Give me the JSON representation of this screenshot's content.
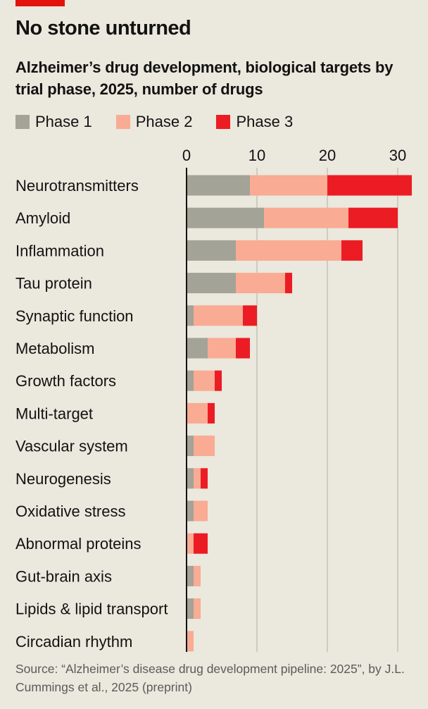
{
  "header": {
    "title": "No stone unturned",
    "subtitle": "Alzheimer’s drug development, biological targets by trial phase, 2025, number of drugs"
  },
  "colors": {
    "background": "#ebe8dd",
    "accent": "#e3120b",
    "phase1": "#a3a397",
    "phase2": "#f9ab93",
    "phase3": "#ec1c24",
    "gridline": "#c5c2b8",
    "axis": "#121212"
  },
  "legend": {
    "items": [
      {
        "label": "Phase 1",
        "color": "#a3a397"
      },
      {
        "label": "Phase 2",
        "color": "#f9ab93"
      },
      {
        "label": "Phase 3",
        "color": "#ec1c24"
      }
    ]
  },
  "chart_data": {
    "type": "bar",
    "orientation": "horizontal",
    "stacked": true,
    "title": "No stone unturned",
    "subtitle": "Alzheimer’s drug development, biological targets by trial phase, 2025, number of drugs",
    "xlim": [
      0,
      32
    ],
    "xticks": [
      0,
      10,
      20,
      30
    ],
    "grid": true,
    "legend_position": "top-left",
    "categories": [
      "Neurotransmitters",
      "Amyloid",
      "Inflammation",
      "Tau protein",
      "Synaptic function",
      "Metabolism",
      "Growth factors",
      "Multi-target",
      "Vascular system",
      "Neurogenesis",
      "Oxidative stress",
      "Abnormal proteins",
      "Gut-brain axis",
      "Lipids & lipid transport",
      "Circadian rhythm"
    ],
    "series": [
      {
        "name": "Phase 1",
        "values": [
          9,
          11,
          7,
          7,
          1,
          3,
          1,
          0,
          1,
          1,
          1,
          0,
          1,
          1,
          0
        ]
      },
      {
        "name": "Phase 2",
        "values": [
          11,
          12,
          15,
          7,
          7,
          4,
          3,
          3,
          3,
          1,
          2,
          1,
          1,
          1,
          1
        ]
      },
      {
        "name": "Phase 3",
        "values": [
          12,
          7,
          3,
          1,
          2,
          2,
          1,
          1,
          0,
          1,
          0,
          2,
          0,
          0,
          0
        ]
      }
    ]
  },
  "source": {
    "text": "Source: “Alzheimer’s disease drug development pipeline: 2025”, by J.L. Cummings et al., 2025 (preprint)"
  }
}
